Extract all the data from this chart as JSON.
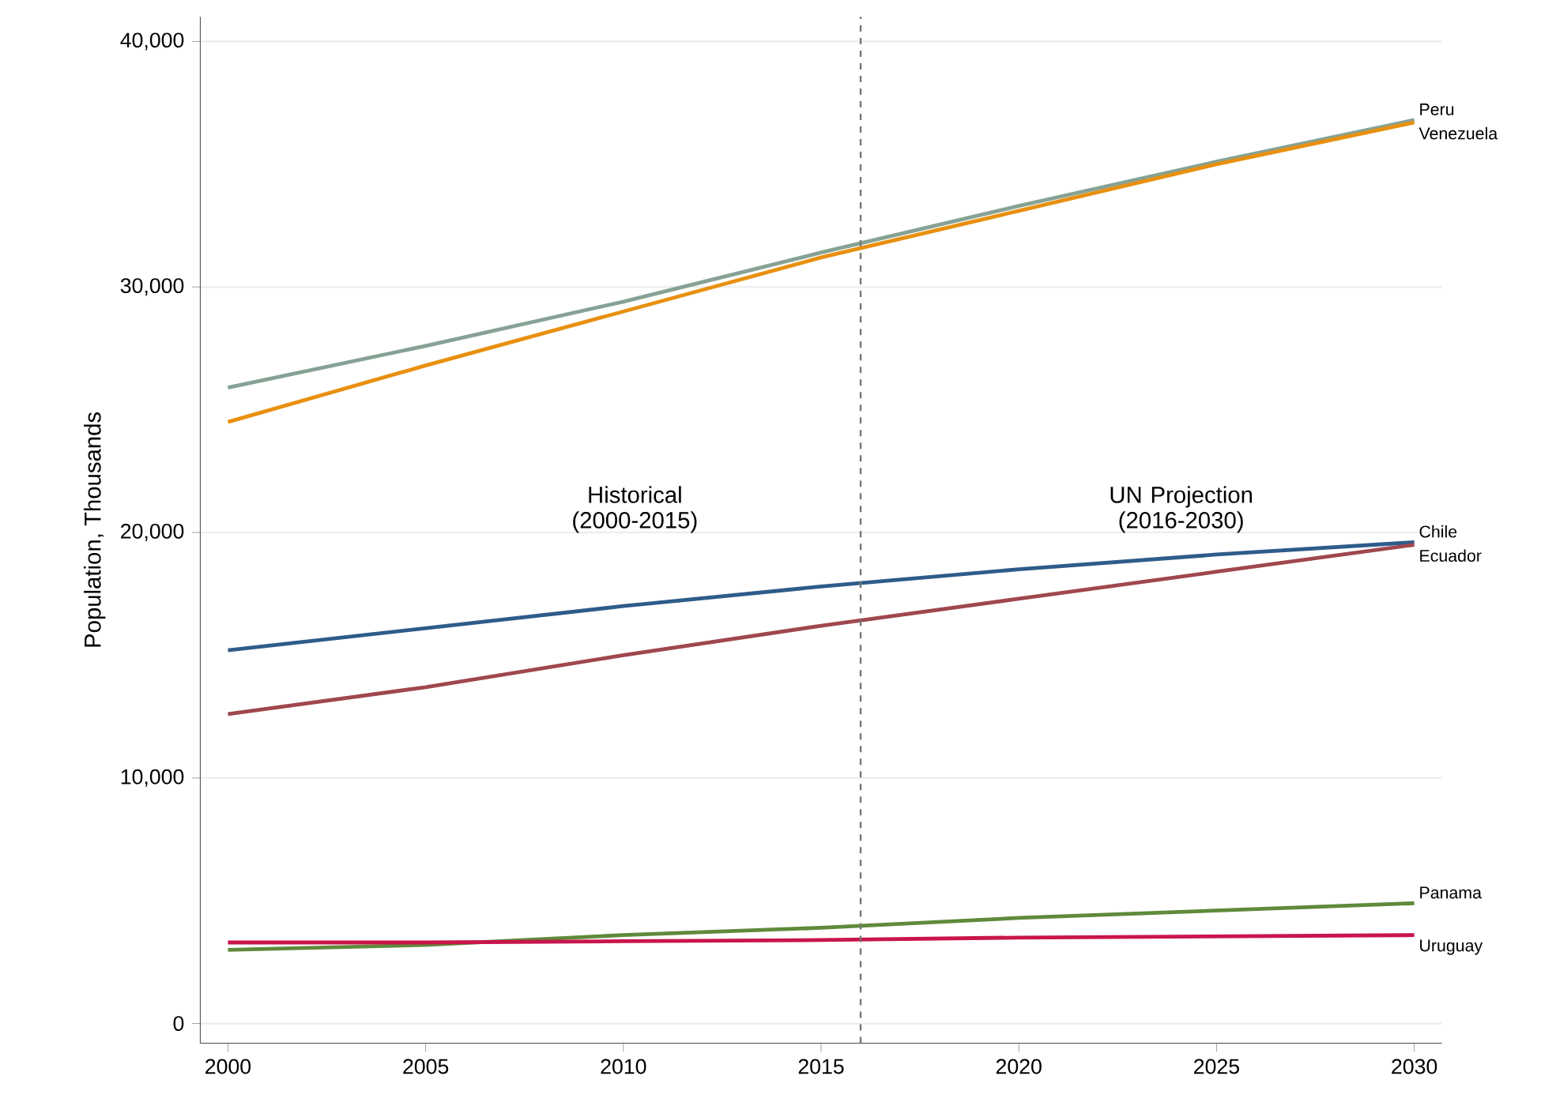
{
  "chart_data": {
    "type": "line",
    "ylabel": "Population, Thousands",
    "x": [
      2000,
      2005,
      2010,
      2015,
      2020,
      2025,
      2030
    ],
    "series": [
      {
        "name": "Peru",
        "color": "#86a294",
        "values": [
          25900,
          27600,
          29400,
          31400,
          33300,
          35100,
          36800
        ]
      },
      {
        "name": "Venezuela",
        "color": "#e8900f",
        "values": [
          24500,
          26800,
          29000,
          31200,
          33100,
          35000,
          36700
        ]
      },
      {
        "name": "Chile",
        "color": "#2e5c8a",
        "values": [
          15200,
          16100,
          17000,
          17800,
          18500,
          19100,
          19600
        ]
      },
      {
        "name": "Ecuador",
        "color": "#a0474e",
        "values": [
          12600,
          13700,
          15000,
          16200,
          17300,
          18400,
          19500
        ]
      },
      {
        "name": "Panama",
        "color": "#5f8a3a",
        "values": [
          3000,
          3200,
          3600,
          3900,
          4300,
          4600,
          4900
        ]
      },
      {
        "name": "Uruguay",
        "color": "#c9154c",
        "values": [
          3300,
          3300,
          3350,
          3400,
          3500,
          3550,
          3600
        ]
      }
    ],
    "xlim": [
      1999.3,
      2030.7
    ],
    "ylim": [
      -800,
      41000
    ],
    "xticks": [
      2000,
      2005,
      2010,
      2015,
      2020,
      2025,
      2030
    ],
    "yticks": [
      {
        "value": 0,
        "label": "0"
      },
      {
        "value": 10000,
        "label": "10,000"
      },
      {
        "value": 20000,
        "label": "20,000"
      },
      {
        "value": 30000,
        "label": "30,000"
      },
      {
        "value": 40000,
        "label": "40,000"
      }
    ],
    "ref_lines": [
      {
        "axis": "x",
        "value": 2016,
        "color": "#777777",
        "line_style": "dashed"
      }
    ],
    "annotations": [
      "Historical (2000-2015)",
      "UN Projection (2016-2030)"
    ],
    "grid": "y",
    "legend": false,
    "marker": "none",
    "line_style": "solid"
  }
}
